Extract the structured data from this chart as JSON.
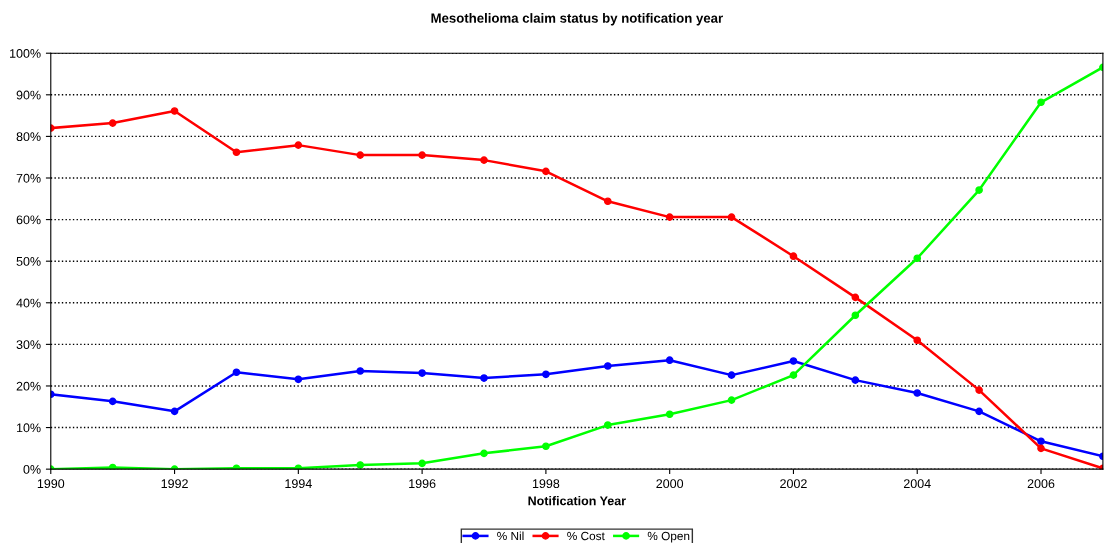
{
  "chart_data": {
    "type": "line",
    "title": "Mesothelioma claim status by notification year",
    "xlabel": "Notification Year",
    "x": [
      1990,
      1991,
      1992,
      1993,
      1994,
      1995,
      1996,
      1997,
      1998,
      1999,
      2000,
      2001,
      2002,
      2003,
      2004,
      2005,
      2006,
      2007
    ],
    "series": [
      {
        "name": "% Nil",
        "color": "#0000ff",
        "values": [
          18.0,
          16.3,
          13.9,
          23.3,
          21.6,
          23.6,
          23.1,
          21.9,
          22.8,
          24.8,
          26.2,
          22.6,
          26.0,
          21.4,
          18.3,
          13.9,
          6.7,
          3.1
        ]
      },
      {
        "name": "% Cost",
        "color": "#ff0000",
        "values": [
          82.0,
          83.2,
          86.1,
          76.2,
          77.9,
          75.5,
          75.5,
          74.3,
          71.6,
          64.4,
          60.6,
          60.6,
          51.2,
          41.3,
          31.0,
          19.0,
          5.0,
          0.2
        ]
      },
      {
        "name": "% Open",
        "color": "#00ff00",
        "values": [
          0,
          0.4,
          0,
          0.2,
          0.2,
          1.0,
          1.4,
          3.8,
          5.5,
          10.6,
          13.2,
          16.6,
          22.6,
          37.0,
          50.7,
          67.1,
          88.2,
          96.6
        ]
      }
    ],
    "xlim": [
      1990,
      2007
    ],
    "xticks": [
      1990,
      1992,
      1994,
      1996,
      1998,
      2000,
      2002,
      2004,
      2006
    ],
    "ylim": [
      0,
      100
    ],
    "yticks": [
      {
        "value": 0,
        "label": "0%"
      },
      {
        "value": 10,
        "label": "10%"
      },
      {
        "value": 20,
        "label": "20%"
      },
      {
        "value": 30,
        "label": "30%"
      },
      {
        "value": 40,
        "label": "40%"
      },
      {
        "value": 50,
        "label": "50%"
      },
      {
        "value": 60,
        "label": "60%"
      },
      {
        "value": 70,
        "label": "70%"
      },
      {
        "value": 80,
        "label": "80%"
      },
      {
        "value": 90,
        "label": "90%"
      },
      {
        "value": 100,
        "label": "100%"
      }
    ],
    "grid": "y",
    "legend": "bottom",
    "marker": "circle",
    "line_style": "solid"
  }
}
